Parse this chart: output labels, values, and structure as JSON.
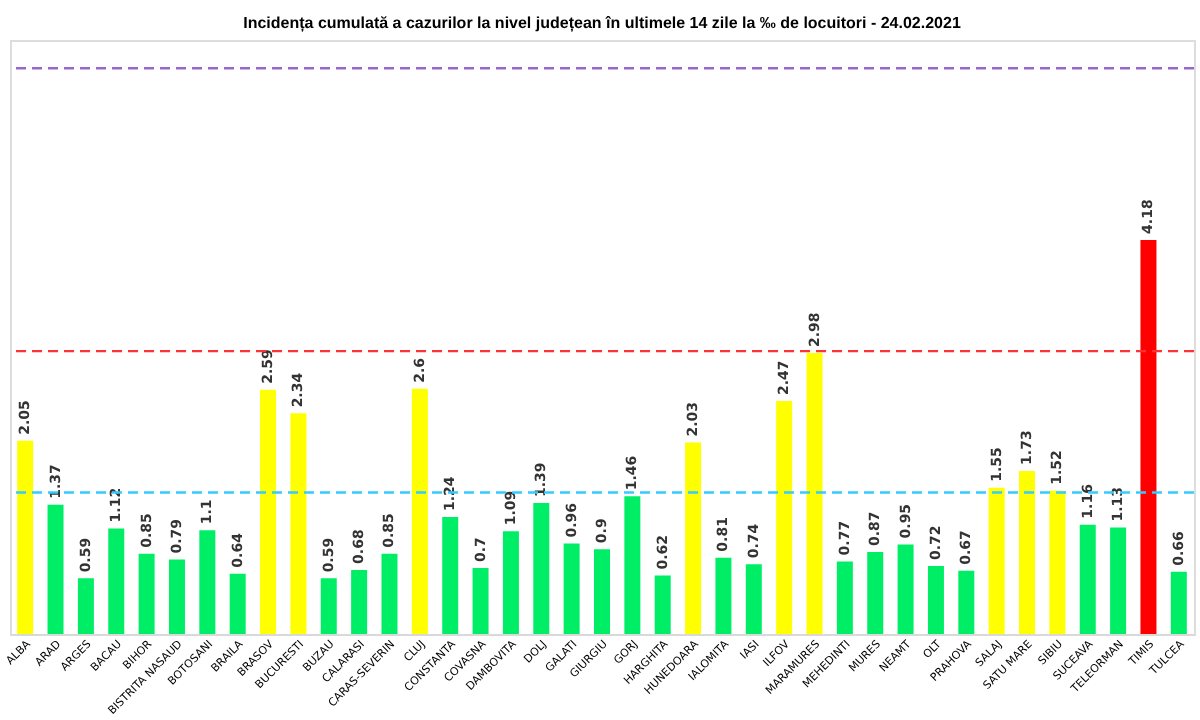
{
  "chart_data": {
    "type": "bar",
    "title": "Incidența cumulată a cazurilor la nivel județean în ultimele 14 zile   la ‰ de locuitori  - 24.02.2021",
    "categories": [
      "ALBA",
      "ARAD",
      "ARGES",
      "BACAU",
      "BIHOR",
      "BISTRITA NASAUD",
      "BOTOSANI",
      "BRAILA",
      "BRASOV",
      "BUCURESTI",
      "BUZAU",
      "CALARASI",
      "CARAS-SEVERIN",
      "CLUJ",
      "CONSTANTA",
      "COVASNA",
      "DAMBOVITA",
      "DOLJ",
      "GALATI",
      "GIURGIU",
      "GORJ",
      "HARGHITA",
      "HUNEDOARA",
      "IALOMITA",
      "IASI",
      "ILFOV",
      "MARAMURES",
      "MEHEDINTI",
      "MURES",
      "NEAMT",
      "OLT",
      "PRAHOVA",
      "SALAJ",
      "SATU MARE",
      "SIBIU",
      "SUCEAVA",
      "TELEORMAN",
      "TIMIS",
      "TULCEA"
    ],
    "values": [
      2.05,
      1.37,
      0.59,
      1.12,
      0.85,
      0.79,
      1.1,
      0.64,
      2.59,
      2.34,
      0.59,
      0.68,
      0.85,
      2.6,
      1.24,
      0.7,
      1.09,
      1.39,
      0.96,
      0.9,
      1.46,
      0.62,
      2.03,
      0.81,
      0.74,
      2.47,
      2.98,
      0.77,
      0.87,
      0.95,
      0.72,
      0.67,
      1.55,
      1.73,
      1.52,
      1.16,
      1.13,
      4.18,
      0.66
    ],
    "colors": [
      "#ffff00",
      "#00ee66",
      "#00ee66",
      "#00ee66",
      "#00ee66",
      "#00ee66",
      "#00ee66",
      "#00ee66",
      "#ffff00",
      "#ffff00",
      "#00ee66",
      "#00ee66",
      "#00ee66",
      "#ffff00",
      "#00ee66",
      "#00ee66",
      "#00ee66",
      "#00ee66",
      "#00ee66",
      "#00ee66",
      "#00ee66",
      "#00ee66",
      "#ffff00",
      "#00ee66",
      "#00ee66",
      "#ffff00",
      "#ffff00",
      "#00ee66",
      "#00ee66",
      "#00ee66",
      "#00ee66",
      "#00ee66",
      "#ffff00",
      "#ffff00",
      "#ffff00",
      "#00ee66",
      "#00ee66",
      "#ff0000",
      "#00ee66"
    ],
    "ylim": [
      0,
      6.3
    ],
    "data_labels": true,
    "tick_labels": "x",
    "grid": false,
    "ref_lines": [
      {
        "axis": "y",
        "value": 1.5,
        "color": "#33ccff",
        "line_style": "dashed"
      },
      {
        "axis": "y",
        "value": 3,
        "color": "#ff3333",
        "line_style": "dashed"
      },
      {
        "axis": "y",
        "value": 6,
        "color": "#9966cc",
        "line_style": "dashed"
      }
    ]
  }
}
